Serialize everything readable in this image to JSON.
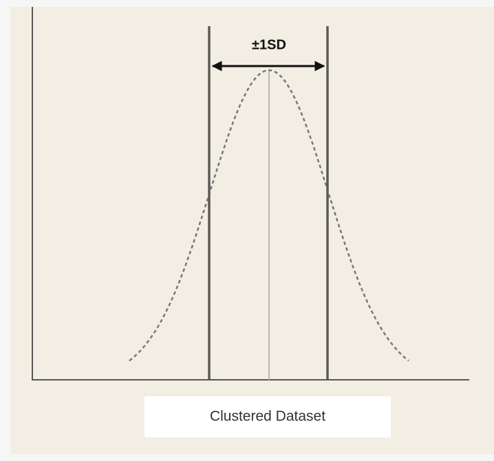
{
  "diagram": {
    "sd_label": "±1SD",
    "caption": "Clustered Dataset"
  }
}
